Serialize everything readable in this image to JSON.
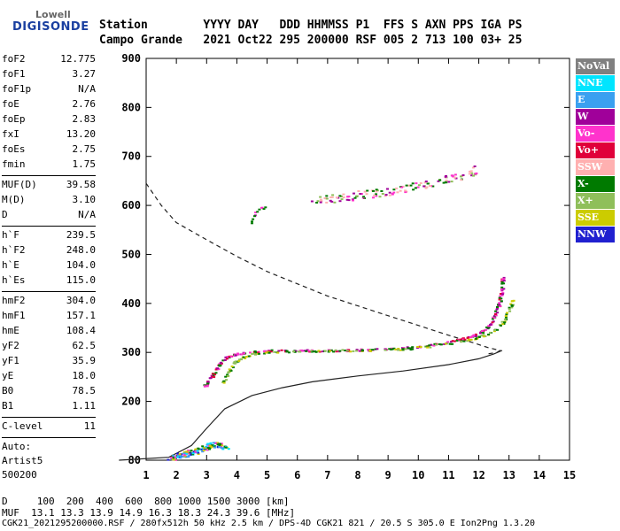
{
  "logo": {
    "brand": "Lowell",
    "product": "DIGISONDE"
  },
  "header": {
    "line1": "Station        YYYY DAY   DDD HHMMSS P1  FFS S AXN PPS IGA PS",
    "line2": "Campo Grande   2021 Oct22 295 200000 RSF 005 2 713 100 03+ 25"
  },
  "params_group1": [
    {
      "name": "foF2",
      "value": "12.775"
    },
    {
      "name": "foF1",
      "value": "3.27"
    },
    {
      "name": "foF1p",
      "value": "N/A"
    },
    {
      "name": "foE",
      "value": "2.76"
    },
    {
      "name": "foEp",
      "value": "2.83"
    },
    {
      "name": "fxI",
      "value": "13.20"
    },
    {
      "name": "foEs",
      "value": "2.75"
    },
    {
      "name": "fmin",
      "value": "1.75"
    }
  ],
  "params_group2": [
    {
      "name": "MUF(D)",
      "value": "39.58"
    },
    {
      "name": "M(D)",
      "value": "3.10"
    },
    {
      "name": "D",
      "value": "N/A"
    }
  ],
  "params_group3": [
    {
      "name": "h`F",
      "value": "239.5"
    },
    {
      "name": "h`F2",
      "value": "248.0"
    },
    {
      "name": "h`E",
      "value": "104.0"
    },
    {
      "name": "h`Es",
      "value": "115.0"
    }
  ],
  "params_group4": [
    {
      "name": "hmF2",
      "value": "304.0"
    },
    {
      "name": "hmF1",
      "value": "157.1"
    },
    {
      "name": "hmE",
      "value": "108.4"
    },
    {
      "name": "yF2",
      "value": "62.5"
    },
    {
      "name": "yF1",
      "value": "35.9"
    },
    {
      "name": "yE",
      "value": "18.0"
    },
    {
      "name": "B0",
      "value": "78.5"
    },
    {
      "name": "B1",
      "value": "1.11"
    }
  ],
  "clevel": {
    "name": "C-level",
    "value": "11"
  },
  "auto": {
    "line1": "Auto:",
    "line2": "Artist5",
    "line3": "500200"
  },
  "legend": [
    {
      "label": "NoVal",
      "color": "#808080"
    },
    {
      "label": "NNE",
      "color": "#00e5ff"
    },
    {
      "label": "E",
      "color": "#3aa0f0"
    },
    {
      "label": "W",
      "color": "#a0009a"
    },
    {
      "label": "Vo-",
      "color": "#ff33cc"
    },
    {
      "label": "Vo+",
      "color": "#e0003a"
    },
    {
      "label": "SSW",
      "color": "#ffb0b0"
    },
    {
      "label": "X-",
      "color": "#007a00"
    },
    {
      "label": "X+",
      "color": "#8fbf5a"
    },
    {
      "label": "SSE",
      "color": "#cccc00"
    },
    {
      "label": "NNW",
      "color": "#2020d0"
    }
  ],
  "footer": {
    "line1": "D     100  200  400  600  800 1000 1500 3000 [km]",
    "line2": "MUF  13.1 13.3 13.9 14.9 16.3 18.3 24.3 39.6 [MHz]",
    "line3": "CGK21_2021295200000.RSF / 280fx512h 50 kHz 2.5 km / DPS-4D CGK21 821 / 20.5 S 305.0 E Ion2Png 1.3.20"
  },
  "chart_data": {
    "type": "scatter",
    "xlim": [
      1,
      15
    ],
    "ylim": [
      80,
      900
    ],
    "x_ticks": [
      1,
      2,
      3,
      4,
      5,
      6,
      7,
      8,
      9,
      10,
      11,
      12,
      13,
      14,
      15
    ],
    "y_ticks": [
      80,
      200,
      300,
      400,
      500,
      600,
      700,
      800,
      900
    ],
    "ordinary_profile": [
      [
        0.1,
        80
      ],
      [
        1.75,
        86
      ],
      [
        2.5,
        110
      ],
      [
        3.0,
        145
      ],
      [
        3.6,
        185
      ],
      [
        4.5,
        212
      ],
      [
        5.5,
        228
      ],
      [
        6.5,
        240
      ],
      [
        8.0,
        252
      ],
      [
        9.5,
        262
      ],
      [
        11,
        275
      ],
      [
        12,
        287
      ],
      [
        12.5,
        297
      ],
      [
        12.775,
        304
      ]
    ],
    "extraordinary_dashed": [
      [
        1,
        645
      ],
      [
        1.5,
        600
      ],
      [
        2,
        565
      ],
      [
        3,
        530
      ],
      [
        4,
        496
      ],
      [
        5,
        465
      ],
      [
        6,
        440
      ],
      [
        7,
        415
      ],
      [
        8,
        395
      ],
      [
        9,
        375
      ],
      [
        10,
        355
      ],
      [
        11,
        335
      ],
      [
        11.8,
        320
      ],
      [
        12.3,
        310
      ],
      [
        12.7,
        304
      ],
      [
        12.6,
        300
      ],
      [
        12.3,
        297
      ]
    ],
    "trace_o": [
      [
        2.9,
        230
      ],
      [
        3.1,
        248
      ],
      [
        3.3,
        268
      ],
      [
        3.5,
        285
      ],
      [
        3.8,
        296
      ],
      [
        4.2,
        300
      ],
      [
        5,
        305
      ],
      [
        6,
        305
      ],
      [
        7,
        305
      ],
      [
        8,
        306
      ],
      [
        9,
        308
      ],
      [
        10,
        313
      ],
      [
        11,
        322
      ],
      [
        11.5,
        330
      ],
      [
        12,
        340
      ],
      [
        12.3,
        355
      ],
      [
        12.5,
        375
      ],
      [
        12.65,
        400
      ],
      [
        12.75,
        430
      ],
      [
        12.78,
        455
      ]
    ],
    "trace_x": [
      [
        3.5,
        240
      ],
      [
        3.7,
        262
      ],
      [
        3.9,
        280
      ],
      [
        4.2,
        292
      ],
      [
        4.6,
        300
      ],
      [
        5.5,
        303
      ],
      [
        6.5,
        304
      ],
      [
        7.5,
        305
      ],
      [
        8.5,
        306
      ],
      [
        9.5,
        308
      ],
      [
        10.5,
        315
      ],
      [
        11.5,
        325
      ],
      [
        12,
        333
      ],
      [
        12.5,
        345
      ],
      [
        12.8,
        365
      ],
      [
        13.0,
        390
      ],
      [
        13.1,
        410
      ]
    ],
    "es_layer": [
      [
        1.8,
        86
      ],
      [
        2.0,
        90
      ],
      [
        2.2,
        92
      ],
      [
        2.4,
        95
      ],
      [
        2.6,
        100
      ],
      [
        2.8,
        104
      ],
      [
        3.0,
        110
      ],
      [
        3.2,
        114
      ],
      [
        3.4,
        112
      ],
      [
        3.6,
        108
      ]
    ],
    "f_multihop": [
      [
        6.5,
        612
      ],
      [
        7,
        615
      ],
      [
        7.5,
        618
      ],
      [
        8,
        622
      ],
      [
        8.5,
        626
      ],
      [
        9,
        630
      ],
      [
        9.5,
        635
      ],
      [
        10,
        640
      ],
      [
        10.5,
        648
      ],
      [
        11,
        656
      ],
      [
        11.5,
        664
      ],
      [
        12,
        676
      ]
    ],
    "multihop_lower": [
      [
        4.4,
        560
      ],
      [
        4.5,
        575
      ],
      [
        4.6,
        590
      ],
      [
        4.8,
        595
      ],
      [
        5.0,
        598
      ]
    ]
  }
}
